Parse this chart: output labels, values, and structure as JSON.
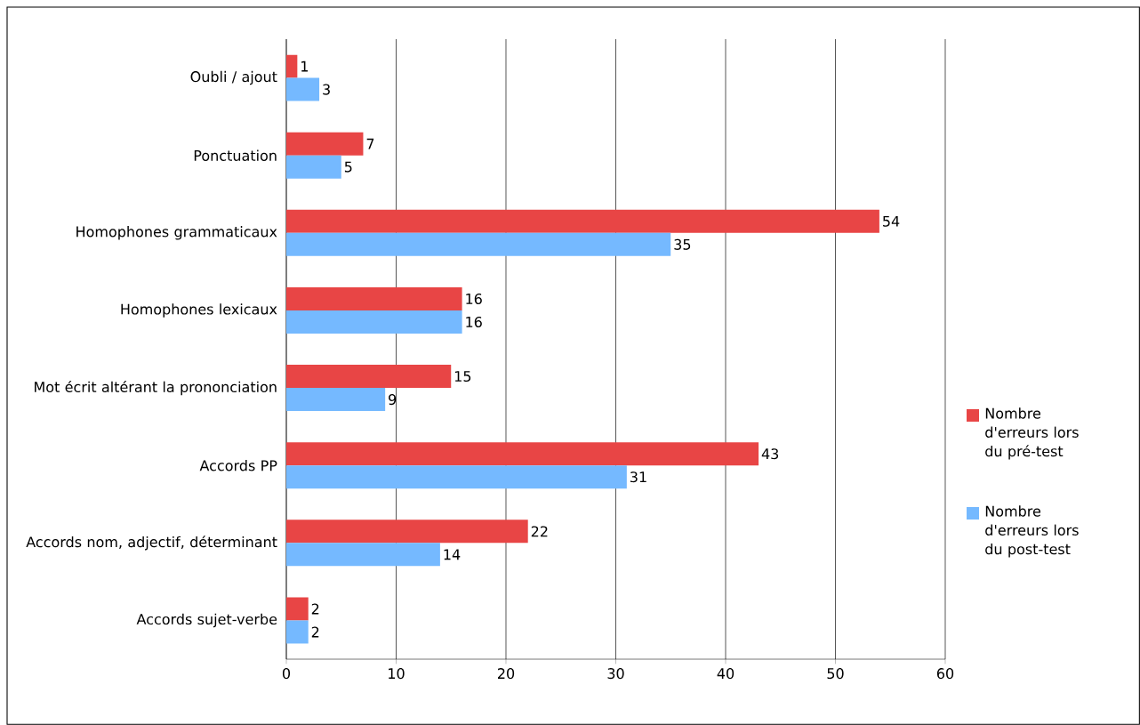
{
  "chart_data": {
    "type": "bar",
    "orientation": "horizontal",
    "categories": [
      "Oubli / ajout",
      "Ponctuation",
      "Homophones grammaticaux",
      "Homophones lexicaux",
      "Mot écrit altérant la prononciation",
      "Accords PP",
      "Accords nom, adjectif, déterminant",
      "Accords sujet-verbe"
    ],
    "series": [
      {
        "name": "Nombre d'erreurs lors du pré-test",
        "color": "#e84545",
        "values": [
          1,
          7,
          54,
          16,
          15,
          43,
          22,
          2
        ]
      },
      {
        "name": "Nombre d'erreurs lors du post-test",
        "color": "#75b9ff",
        "values": [
          3,
          5,
          35,
          16,
          9,
          31,
          14,
          2
        ]
      }
    ],
    "xlim": [
      0,
      60
    ],
    "xticks": [
      0,
      10,
      20,
      30,
      40,
      50,
      60
    ],
    "grid": "x",
    "legend": "right",
    "data_labels": true
  }
}
